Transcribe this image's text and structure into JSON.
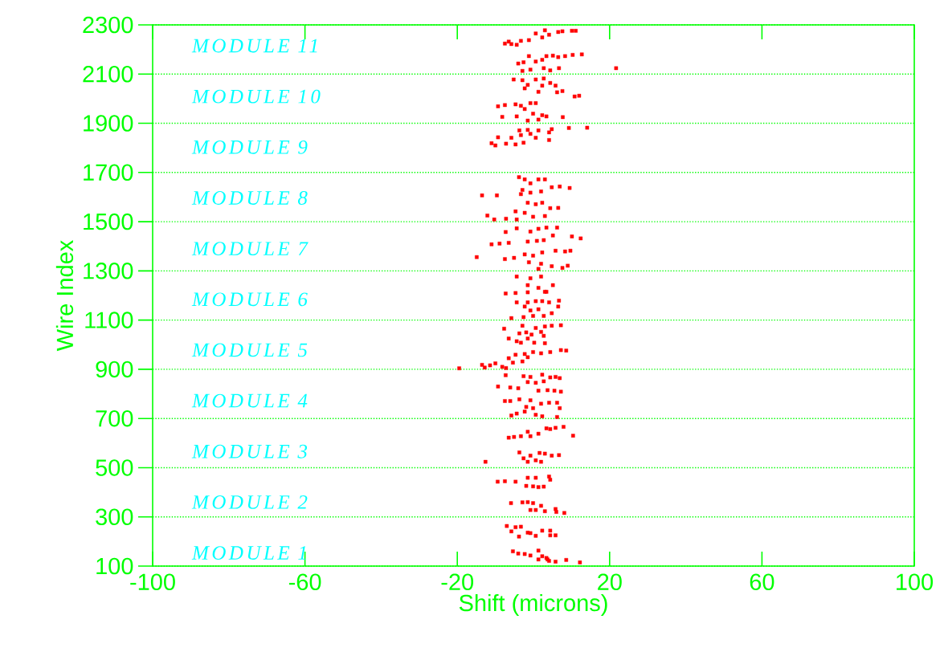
{
  "chart_data": {
    "type": "scatter",
    "xlabel": "Shift (microns)",
    "ylabel": "Wire Index",
    "xlim": [
      -100,
      100
    ],
    "ylim": [
      100,
      2300
    ],
    "xticks": [
      -100,
      -60,
      -20,
      20,
      60,
      100
    ],
    "yticks": [
      100,
      300,
      500,
      700,
      900,
      1100,
      1300,
      1500,
      1700,
      1900,
      2100,
      2300
    ],
    "grid": "y",
    "marker": "square",
    "series": [
      {
        "color": "#ff0000",
        "x": [
          -7.5,
          -6.5,
          -5.8,
          -4.4,
          -3.3,
          -1.2,
          0.6,
          2.3,
          3.0,
          4.1,
          6.5,
          7.6,
          10.1,
          11.1,
          -4.0,
          -2.6,
          -1.2,
          0.6,
          2.3,
          3.4,
          5.1,
          6.5,
          8.3,
          10.3,
          12.7,
          21.7,
          -2.9,
          -0.8,
          2.7,
          4.4,
          6.7,
          -5.2,
          -2.9,
          -1.5,
          0.6,
          2.7,
          2.3,
          4.4,
          5.8,
          1.3,
          6.2,
          7.6,
          10.8,
          12.0,
          -2.3,
          -9.3,
          -7.5,
          -4.7,
          -3.3,
          -0.8,
          0.6,
          -2.3,
          -8.2,
          -4.4,
          -0.1,
          2.3,
          3.4,
          -1.5,
          1.3,
          7.7,
          -3.7,
          -1.5,
          1.3,
          4.8,
          9.3,
          14.1,
          -9.3,
          -5.8,
          -3.3,
          -0.8,
          0.6,
          4.1,
          -11.0,
          -10.0,
          -7.2,
          -4.7,
          -2.6,
          4.1,
          -3.8,
          -2.3,
          -0.8,
          1.3,
          3.0,
          4.8,
          6.9,
          9.5,
          -13.5,
          -9.6,
          -2.9,
          -0.8,
          2.0,
          -3.3,
          -1.5,
          0.6,
          2.3,
          4.4,
          6.5,
          -4.7,
          -2.3,
          -0.1,
          3.0,
          -12.1,
          -10.3,
          -7.2,
          -4.4,
          -4.4,
          -0.8,
          1.3,
          3.4,
          6.2,
          5.1,
          10.1,
          12.4,
          -7.3,
          -11.0,
          -8.9,
          -6.5,
          -1.5,
          0.9,
          2.7,
          -14.9,
          -7.5,
          -5.1,
          -2.3,
          -0.1,
          2.3,
          5.8,
          8.3,
          9.7,
          -1.2,
          2.0,
          4.8,
          7.6,
          9.0,
          1.3,
          -4.4,
          -0.8,
          2.0,
          -1.5,
          1.3,
          5.1,
          3.4,
          -7.3,
          -4.7,
          -1.5,
          3.0,
          -4.4,
          -1.5,
          0.6,
          2.3,
          4.1,
          6.7,
          -2.3,
          -0.8,
          1.3,
          6.5,
          -2.6,
          -0.1,
          2.7,
          4.8,
          -5.8,
          -2.9,
          0.6,
          3.0,
          4.8,
          7.2,
          -7.7,
          -3.7,
          -1.9,
          -0.5,
          2.0,
          2.7,
          -6.5,
          -4.4,
          -1.5,
          -3.3,
          0.2,
          3.0,
          7.2,
          8.6,
          4.4,
          2.0,
          -0.1,
          -2.3,
          -4.7,
          -6.5,
          -5.4,
          -2.9,
          -1.5,
          -10.0,
          -11.4,
          -13.5,
          -12.8,
          -8.2,
          -19.5,
          -7.2,
          -7.3,
          -2.6,
          -0.8,
          2.3,
          4.4,
          5.8,
          6.9,
          -9.3,
          -6.1,
          -4.0,
          -1.5,
          0.6,
          2.7,
          1.3,
          3.7,
          5.5,
          7.2,
          -7.5,
          -6.1,
          -3.7,
          -0.8,
          2.0,
          4.1,
          6.2,
          6.9,
          -1.9,
          -0.1,
          -5.8,
          -4.4,
          -2.3,
          0.6,
          2.3,
          6.2,
          -1.5,
          1.3,
          3.4,
          4.4,
          5.8,
          7.9,
          10.4,
          -6.5,
          -5.1,
          -3.3,
          -0.8,
          -3.7,
          -0.8,
          1.6,
          3.0,
          4.8,
          6.7,
          -2.6,
          -1.5,
          0.6,
          2.0,
          -12.6,
          -9.4,
          -7.5,
          -4.7,
          -1.5,
          0.6,
          4.1,
          4.4,
          -1.9,
          -0.1,
          1.3,
          2.7,
          -5.9,
          -2.9,
          -1.5,
          -0.1,
          2.0,
          3.0,
          5.8,
          6.0,
          8.1,
          -0.8,
          0.6,
          -7.0,
          -4.7,
          -3.3,
          -5.8,
          -1.5,
          -0.8,
          0.6,
          2.3,
          4.4,
          4.4,
          5.8,
          -3.8,
          -5.4,
          -4.0,
          -2.3,
          -0.8,
          1.3,
          2.3,
          1.3,
          3.7,
          4.1,
          5.8,
          8.6,
          12.2,
          3.4
        ],
        "values": [
          2224,
          2232,
          2222,
          2219,
          2235,
          2238,
          2265,
          2249,
          2278,
          2260,
          2271,
          2274,
          2276,
          2276,
          2143,
          2148,
          2173,
          2151,
          2158,
          2173,
          2175,
          2169,
          2173,
          2178,
          2180,
          2124,
          2113,
          2118,
          2124,
          2115,
          2124,
          2078,
          2075,
          2056,
          2078,
          2082,
          2053,
          2064,
          2053,
          2028,
          2026,
          2031,
          2009,
          2012,
          2042,
          1969,
          1974,
          1977,
          1971,
          1982,
          1982,
          1958,
          1926,
          1928,
          1939,
          1933,
          1928,
          1911,
          1915,
          1925,
          1871,
          1873,
          1871,
          1876,
          1881,
          1882,
          1843,
          1841,
          1852,
          1857,
          1841,
          1863,
          1819,
          1810,
          1817,
          1814,
          1821,
          1832,
          1681,
          1672,
          1656,
          1672,
          1672,
          1640,
          1643,
          1637,
          1607,
          1607,
          1629,
          1618,
          1623,
          1612,
          1577,
          1571,
          1577,
          1555,
          1556,
          1542,
          1536,
          1520,
          1523,
          1525,
          1509,
          1512,
          1509,
          1473,
          1460,
          1471,
          1476,
          1476,
          1444,
          1440,
          1432,
          1458,
          1408,
          1411,
          1414,
          1419,
          1422,
          1425,
          1356,
          1348,
          1353,
          1367,
          1362,
          1375,
          1382,
          1379,
          1382,
          1335,
          1329,
          1319,
          1312,
          1321,
          1308,
          1277,
          1270,
          1277,
          1242,
          1231,
          1242,
          1215,
          1208,
          1210,
          1213,
          1215,
          1172,
          1172,
          1177,
          1177,
          1172,
          1179,
          1155,
          1139,
          1144,
          1155,
          1112,
          1117,
          1117,
          1128,
          1108,
          1077,
          1068,
          1074,
          1077,
          1079,
          1065,
          1046,
          1050,
          1041,
          1052,
          1036,
          1025,
          1014,
          1025,
          1008,
          1008,
          1006,
          978,
          976,
          970,
          965,
          970,
          962,
          959,
          945,
          927,
          932,
          949,
          924,
          916,
          918,
          907,
          910,
          904,
          905,
          876,
          872,
          869,
          878,
          867,
          869,
          864,
          830,
          826,
          823,
          848,
          845,
          851,
          813,
          815,
          813,
          809,
          771,
          771,
          778,
          774,
          760,
          764,
          764,
          742,
          747,
          742,
          712,
          720,
          728,
          715,
          709,
          706,
          646,
          638,
          660,
          657,
          662,
          666,
          630,
          622,
          625,
          628,
          628,
          562,
          549,
          560,
          557,
          549,
          551,
          538,
          524,
          530,
          524,
          524,
          443,
          445,
          443,
          459,
          459,
          464,
          451,
          426,
          424,
          421,
          423,
          356,
          359,
          360,
          356,
          345,
          323,
          332,
          320,
          316,
          328,
          328,
          263,
          258,
          260,
          241,
          236,
          234,
          223,
          244,
          244,
          225,
          225,
          220,
          160,
          151,
          149,
          143,
          163,
          140,
          127,
          127,
          121,
          118,
          125,
          115,
          133
        ]
      }
    ],
    "annotations": [
      "MODULE 11",
      "MODULE 10",
      "MODULE 9",
      "MODULE 8",
      "MODULE 7",
      "MODULE 6",
      "MODULE 5",
      "MODULE 4",
      "MODULE 3",
      "MODULE 2",
      "MODULE 1"
    ]
  }
}
